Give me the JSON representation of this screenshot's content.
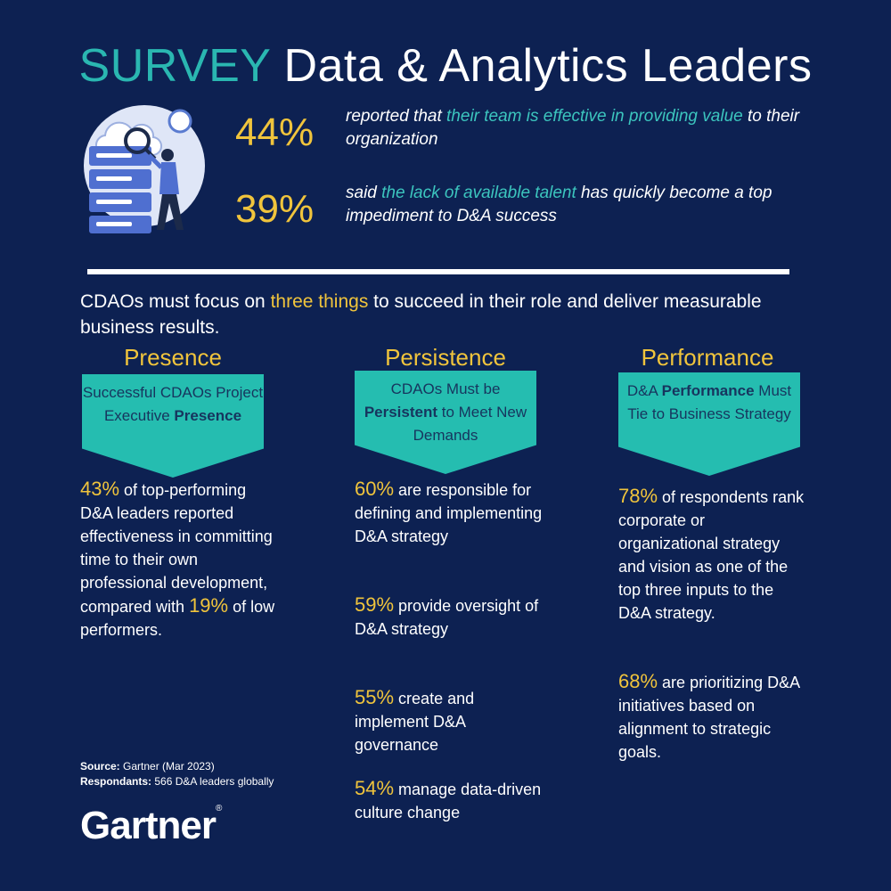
{
  "header": {
    "keyword": "SURVEY",
    "title": "Data & Analytics Leaders"
  },
  "stats": [
    {
      "pct": "44%",
      "text_a": "reported that ",
      "text_b": "their team is effective in providing value",
      "text_c": " to their organization"
    },
    {
      "pct": "39%",
      "text_a": "said ",
      "text_b": "the lack of available talent",
      "text_c": " has quickly become a top impediment to D&A success"
    }
  ],
  "intro": {
    "a": "CDAOs must focus on ",
    "b": "three things",
    "c": " to succeed in their role and deliver measurable business results."
  },
  "pillars": [
    {
      "heading": "Presence",
      "banner": {
        "a": "Successful CDAOs Project Executive ",
        "b": "Presence",
        "c": ""
      },
      "items": [
        {
          "pct": "43%",
          "text": " of top-performing D&A leaders reported effectiveness in committing time to their own professional development, compared with ",
          "pct2": "19%",
          "text2": " of low performers."
        }
      ]
    },
    {
      "heading": "Persistence",
      "banner": {
        "a": "CDAOs Must be ",
        "b": "Persistent",
        "c": " to Meet New Demands"
      },
      "items": [
        {
          "pct": "60%",
          "text": " are responsible for defining and implementing D&A strategy"
        },
        {
          "pct": "59%",
          "text": " provide oversight of D&A strategy"
        },
        {
          "pct": "55%",
          "text": " create and implement D&A governance"
        },
        {
          "pct": "54%",
          "text": " manage data-driven culture change"
        }
      ]
    },
    {
      "heading": "Performance",
      "banner": {
        "a": "D&A ",
        "b": "Performance",
        "c": " Must Tie to Business Strategy"
      },
      "items": [
        {
          "pct": "78%",
          "text": " of respondents rank corporate or organizational strategy and vision as one of the top three inputs to the D&A strategy."
        },
        {
          "pct": "68%",
          "text": " are prioritizing D&A initiatives based on alignment to strategic goals."
        }
      ]
    }
  ],
  "source": {
    "label1": "Source:",
    "value1": " Gartner (Mar 2023)",
    "label2": "Respondants:",
    "value2": " 566 D&A leaders globally"
  },
  "logo": {
    "text": "Gartner",
    "mark": "®"
  },
  "illustration": {
    "icon": "server-analyst-illustration"
  },
  "colors": {
    "background": "#0d2152",
    "accent_teal": "#2ab7b1",
    "accent_yellow": "#f0c43c",
    "banner": "#25bdb0"
  }
}
